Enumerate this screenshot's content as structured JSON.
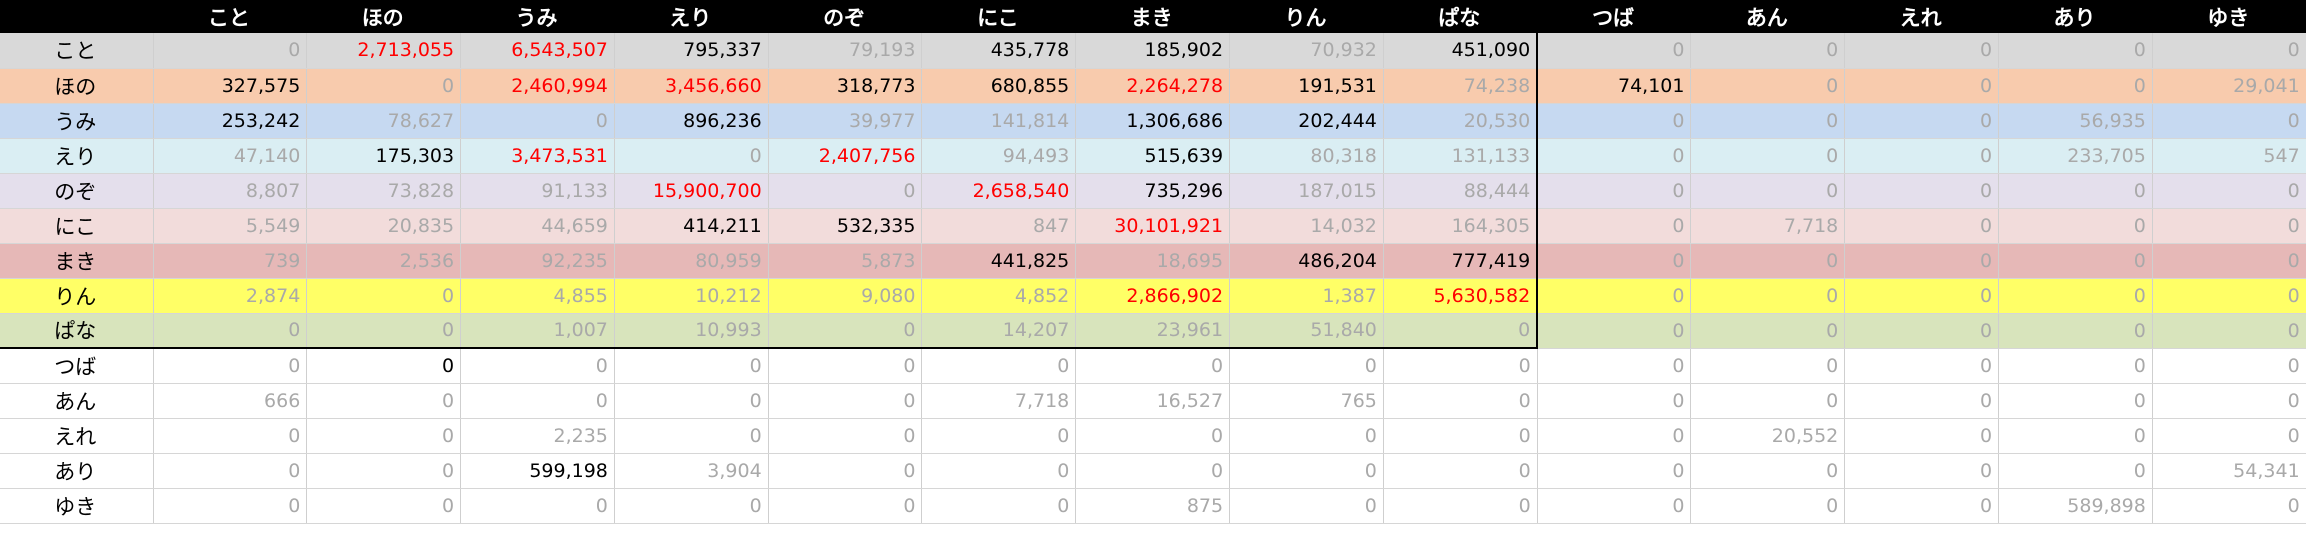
{
  "columns": [
    "こと",
    "ほの",
    "うみ",
    "えり",
    "のぞ",
    "にこ",
    "まき",
    "りん",
    "ぱな",
    "つば",
    "あん",
    "えれ",
    "あり",
    "ゆき"
  ],
  "colors": {
    "header_bg": "#000000",
    "header_text": "#ffffff",
    "text_black": "#000000",
    "text_gray": "#a9a9a9",
    "text_red": "#ff0000",
    "box_border": "#000000"
  },
  "rows": [
    {
      "label": "こと",
      "bg": "#d9d9d9",
      "cells": [
        [
          "0",
          "g"
        ],
        [
          "2,713,055",
          "r"
        ],
        [
          "6,543,507",
          "r"
        ],
        [
          "795,337",
          "b"
        ],
        [
          "79,193",
          "g"
        ],
        [
          "435,778",
          "b"
        ],
        [
          "185,902",
          "b"
        ],
        [
          "70,932",
          "g"
        ],
        [
          "451,090",
          "b"
        ],
        [
          "0",
          "g"
        ],
        [
          "0",
          "g"
        ],
        [
          "0",
          "g"
        ],
        [
          "0",
          "g"
        ],
        [
          "0",
          "g"
        ]
      ]
    },
    {
      "label": "ほの",
      "bg": "#f8cbad",
      "cells": [
        [
          "327,575",
          "b"
        ],
        [
          "0",
          "g"
        ],
        [
          "2,460,994",
          "r"
        ],
        [
          "3,456,660",
          "r"
        ],
        [
          "318,773",
          "b"
        ],
        [
          "680,855",
          "b"
        ],
        [
          "2,264,278",
          "r"
        ],
        [
          "191,531",
          "b"
        ],
        [
          "74,238",
          "g"
        ],
        [
          "74,101",
          "b"
        ],
        [
          "0",
          "g"
        ],
        [
          "0",
          "g"
        ],
        [
          "0",
          "g"
        ],
        [
          "29,041",
          "g"
        ]
      ]
    },
    {
      "label": "うみ",
      "bg": "#c6d9f1",
      "cells": [
        [
          "253,242",
          "b"
        ],
        [
          "78,627",
          "g"
        ],
        [
          "0",
          "g"
        ],
        [
          "896,236",
          "b"
        ],
        [
          "39,977",
          "g"
        ],
        [
          "141,814",
          "g"
        ],
        [
          "1,306,686",
          "b"
        ],
        [
          "202,444",
          "b"
        ],
        [
          "20,530",
          "g"
        ],
        [
          "0",
          "g"
        ],
        [
          "0",
          "g"
        ],
        [
          "0",
          "g"
        ],
        [
          "56,935",
          "g"
        ],
        [
          "0",
          "g"
        ]
      ]
    },
    {
      "label": "えり",
      "bg": "#daeef3",
      "cells": [
        [
          "47,140",
          "g"
        ],
        [
          "175,303",
          "b"
        ],
        [
          "3,473,531",
          "r"
        ],
        [
          "0",
          "g"
        ],
        [
          "2,407,756",
          "r"
        ],
        [
          "94,493",
          "g"
        ],
        [
          "515,639",
          "b"
        ],
        [
          "80,318",
          "g"
        ],
        [
          "131,133",
          "g"
        ],
        [
          "0",
          "g"
        ],
        [
          "0",
          "g"
        ],
        [
          "0",
          "g"
        ],
        [
          "233,705",
          "g"
        ],
        [
          "547",
          "g"
        ]
      ]
    },
    {
      "label": "のぞ",
      "bg": "#e4dfec",
      "cells": [
        [
          "8,807",
          "g"
        ],
        [
          "73,828",
          "g"
        ],
        [
          "91,133",
          "g"
        ],
        [
          "15,900,700",
          "r"
        ],
        [
          "0",
          "g"
        ],
        [
          "2,658,540",
          "r"
        ],
        [
          "735,296",
          "b"
        ],
        [
          "187,015",
          "g"
        ],
        [
          "88,444",
          "g"
        ],
        [
          "0",
          "g"
        ],
        [
          "0",
          "g"
        ],
        [
          "0",
          "g"
        ],
        [
          "0",
          "g"
        ],
        [
          "0",
          "g"
        ]
      ]
    },
    {
      "label": "にこ",
      "bg": "#f2dcdb",
      "cells": [
        [
          "5,549",
          "g"
        ],
        [
          "20,835",
          "g"
        ],
        [
          "44,659",
          "g"
        ],
        [
          "414,211",
          "b"
        ],
        [
          "532,335",
          "b"
        ],
        [
          "847",
          "g"
        ],
        [
          "30,101,921",
          "r"
        ],
        [
          "14,032",
          "g"
        ],
        [
          "164,305",
          "g"
        ],
        [
          "0",
          "g"
        ],
        [
          "7,718",
          "g"
        ],
        [
          "0",
          "g"
        ],
        [
          "0",
          "g"
        ],
        [
          "0",
          "g"
        ]
      ]
    },
    {
      "label": "まき",
      "bg": "#e6b8b7",
      "cells": [
        [
          "739",
          "g"
        ],
        [
          "2,536",
          "g"
        ],
        [
          "92,235",
          "g"
        ],
        [
          "80,959",
          "g"
        ],
        [
          "5,873",
          "g"
        ],
        [
          "441,825",
          "b"
        ],
        [
          "18,695",
          "g"
        ],
        [
          "486,204",
          "b"
        ],
        [
          "777,419",
          "b"
        ],
        [
          "0",
          "g"
        ],
        [
          "0",
          "g"
        ],
        [
          "0",
          "g"
        ],
        [
          "0",
          "g"
        ],
        [
          "0",
          "g"
        ]
      ]
    },
    {
      "label": "りん",
      "bg": "#ffff66",
      "cells": [
        [
          "2,874",
          "g"
        ],
        [
          "0",
          "g"
        ],
        [
          "4,855",
          "g"
        ],
        [
          "10,212",
          "g"
        ],
        [
          "9,080",
          "g"
        ],
        [
          "4,852",
          "g"
        ],
        [
          "2,866,902",
          "r"
        ],
        [
          "1,387",
          "g"
        ],
        [
          "5,630,582",
          "r"
        ],
        [
          "0",
          "g"
        ],
        [
          "0",
          "g"
        ],
        [
          "0",
          "g"
        ],
        [
          "0",
          "g"
        ],
        [
          "0",
          "g"
        ]
      ]
    },
    {
      "label": "ぱな",
      "bg": "#d8e4bc",
      "cells": [
        [
          "0",
          "g"
        ],
        [
          "0",
          "g"
        ],
        [
          "1,007",
          "g"
        ],
        [
          "10,993",
          "g"
        ],
        [
          "0",
          "g"
        ],
        [
          "14,207",
          "g"
        ],
        [
          "23,961",
          "g"
        ],
        [
          "51,840",
          "g"
        ],
        [
          "0",
          "g"
        ],
        [
          "0",
          "g"
        ],
        [
          "0",
          "g"
        ],
        [
          "0",
          "g"
        ],
        [
          "0",
          "g"
        ],
        [
          "0",
          "g"
        ]
      ]
    },
    {
      "label": "つば",
      "bg": "#ffffff",
      "cells": [
        [
          "0",
          "g"
        ],
        [
          "0",
          "b"
        ],
        [
          "0",
          "g"
        ],
        [
          "0",
          "g"
        ],
        [
          "0",
          "g"
        ],
        [
          "0",
          "g"
        ],
        [
          "0",
          "g"
        ],
        [
          "0",
          "g"
        ],
        [
          "0",
          "g"
        ],
        [
          "0",
          "g"
        ],
        [
          "0",
          "g"
        ],
        [
          "0",
          "g"
        ],
        [
          "0",
          "g"
        ],
        [
          "0",
          "g"
        ]
      ]
    },
    {
      "label": "あん",
      "bg": "#ffffff",
      "cells": [
        [
          "666",
          "g"
        ],
        [
          "0",
          "g"
        ],
        [
          "0",
          "g"
        ],
        [
          "0",
          "g"
        ],
        [
          "0",
          "g"
        ],
        [
          "7,718",
          "g"
        ],
        [
          "16,527",
          "g"
        ],
        [
          "765",
          "g"
        ],
        [
          "0",
          "g"
        ],
        [
          "0",
          "g"
        ],
        [
          "0",
          "g"
        ],
        [
          "0",
          "g"
        ],
        [
          "0",
          "g"
        ],
        [
          "0",
          "g"
        ]
      ]
    },
    {
      "label": "えれ",
      "bg": "#ffffff",
      "cells": [
        [
          "0",
          "g"
        ],
        [
          "0",
          "g"
        ],
        [
          "2,235",
          "g"
        ],
        [
          "0",
          "g"
        ],
        [
          "0",
          "g"
        ],
        [
          "0",
          "g"
        ],
        [
          "0",
          "g"
        ],
        [
          "0",
          "g"
        ],
        [
          "0",
          "g"
        ],
        [
          "0",
          "g"
        ],
        [
          "20,552",
          "g"
        ],
        [
          "0",
          "g"
        ],
        [
          "0",
          "g"
        ],
        [
          "0",
          "g"
        ]
      ]
    },
    {
      "label": "あり",
      "bg": "#ffffff",
      "cells": [
        [
          "0",
          "g"
        ],
        [
          "0",
          "g"
        ],
        [
          "599,198",
          "b"
        ],
        [
          "3,904",
          "g"
        ],
        [
          "0",
          "g"
        ],
        [
          "0",
          "g"
        ],
        [
          "0",
          "g"
        ],
        [
          "0",
          "g"
        ],
        [
          "0",
          "g"
        ],
        [
          "0",
          "g"
        ],
        [
          "0",
          "g"
        ],
        [
          "0",
          "g"
        ],
        [
          "0",
          "g"
        ],
        [
          "54,341",
          "g"
        ]
      ]
    },
    {
      "label": "ゆき",
      "bg": "#ffffff",
      "cells": [
        [
          "0",
          "g"
        ],
        [
          "0",
          "g"
        ],
        [
          "0",
          "g"
        ],
        [
          "0",
          "g"
        ],
        [
          "0",
          "g"
        ],
        [
          "0",
          "g"
        ],
        [
          "875",
          "g"
        ],
        [
          "0",
          "g"
        ],
        [
          "0",
          "g"
        ],
        [
          "0",
          "g"
        ],
        [
          "0",
          "g"
        ],
        [
          "0",
          "g"
        ],
        [
          "589,898",
          "g"
        ],
        [
          "0",
          "g"
        ]
      ]
    }
  ]
}
